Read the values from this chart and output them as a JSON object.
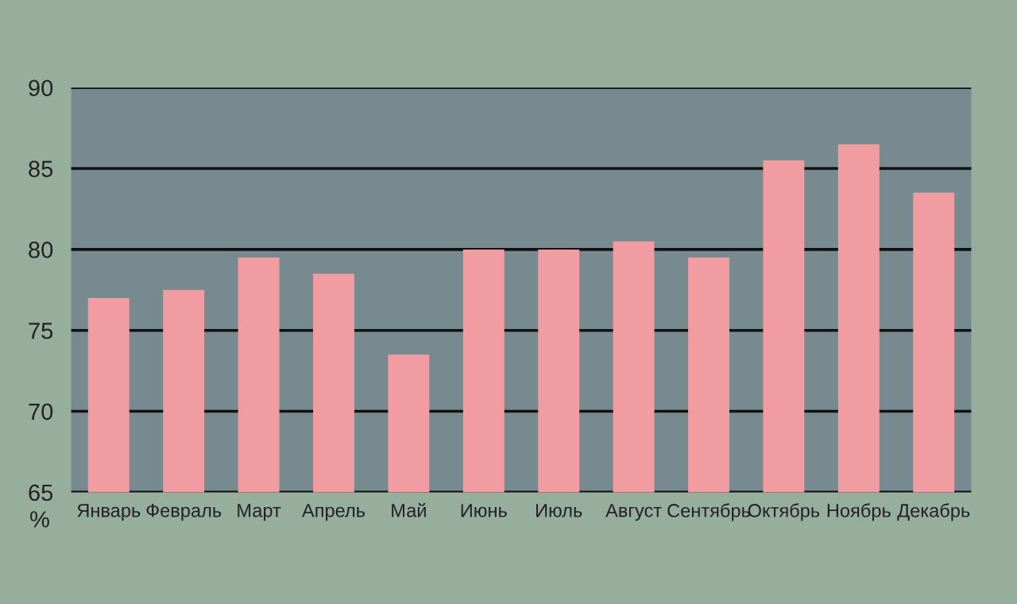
{
  "chart_data": {
    "type": "bar",
    "ylabel": "%",
    "categories": [
      "Январь",
      "Февраль",
      "Март",
      "Апрель",
      "Май",
      "Июнь",
      "Июль",
      "Август",
      "Сентябрь",
      "Октябрь",
      "Ноябрь",
      "Декабрь"
    ],
    "values": [
      77,
      77.5,
      79.5,
      78.5,
      73.5,
      80,
      80,
      80.5,
      79.5,
      85.5,
      86.5,
      83.5
    ],
    "color": "#f09ca0",
    "ylim": [
      65,
      90
    ],
    "yticks": [
      65,
      70,
      75,
      80,
      85,
      90
    ],
    "grid": "y"
  }
}
